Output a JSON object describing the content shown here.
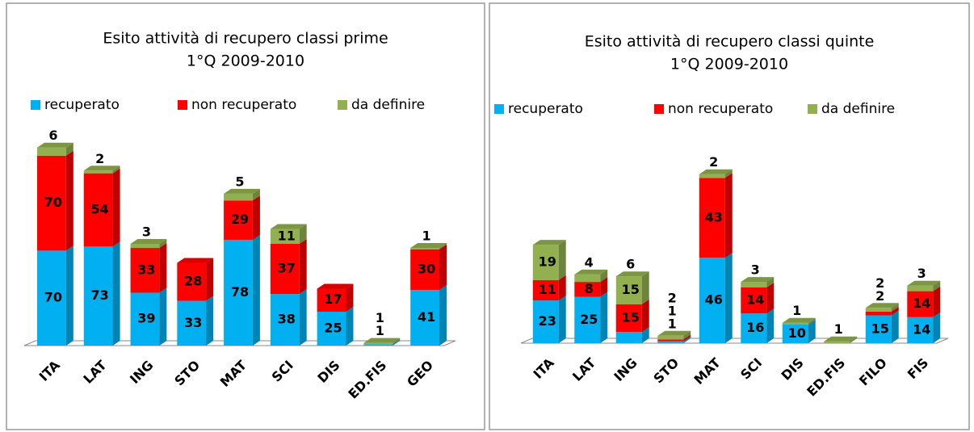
{
  "chart_data": [
    {
      "type": "bar",
      "stacked": true,
      "title": "Esito attività di recupero classi prime",
      "subtitle": "1°Q 2009-2010",
      "categories": [
        "ITA",
        "LAT",
        "ING",
        "STO",
        "MAT",
        "SCI",
        "DIS",
        "ED.FIS",
        "GEO"
      ],
      "series": [
        {
          "name": "recuperato",
          "color": "#00b0f0",
          "values": [
            70,
            73,
            39,
            33,
            78,
            38,
            25,
            1,
            41
          ]
        },
        {
          "name": "non recuperato",
          "color": "#ff0000",
          "values": [
            70,
            54,
            33,
            28,
            29,
            37,
            17,
            null,
            30
          ]
        },
        {
          "name": "da definire",
          "color": "#92b050",
          "values": [
            6,
            2,
            3,
            null,
            5,
            11,
            null,
            1,
            1
          ]
        }
      ],
      "ylim": [
        0,
        150
      ]
    },
    {
      "type": "bar",
      "stacked": true,
      "title": "Esito attività di recupero classi quinte",
      "subtitle": "1°Q 2009-2010",
      "categories": [
        "ITA",
        "LAT",
        "ING",
        "STO",
        "MAT",
        "SCI",
        "DIS",
        "ED.FIS",
        "FILO",
        "FIS"
      ],
      "series": [
        {
          "name": "recuperato",
          "color": "#00b0f0",
          "values": [
            23,
            25,
            6,
            1,
            46,
            16,
            10,
            null,
            15,
            14
          ]
        },
        {
          "name": "non recuperato",
          "color": "#ff0000",
          "values": [
            11,
            8,
            15,
            1,
            43,
            14,
            null,
            null,
            2,
            14
          ]
        },
        {
          "name": "da definire",
          "color": "#92b050",
          "values": [
            19,
            4,
            15,
            2,
            2,
            3,
            1,
            1,
            2,
            3
          ]
        }
      ],
      "ylim": [
        0,
        100
      ]
    }
  ]
}
